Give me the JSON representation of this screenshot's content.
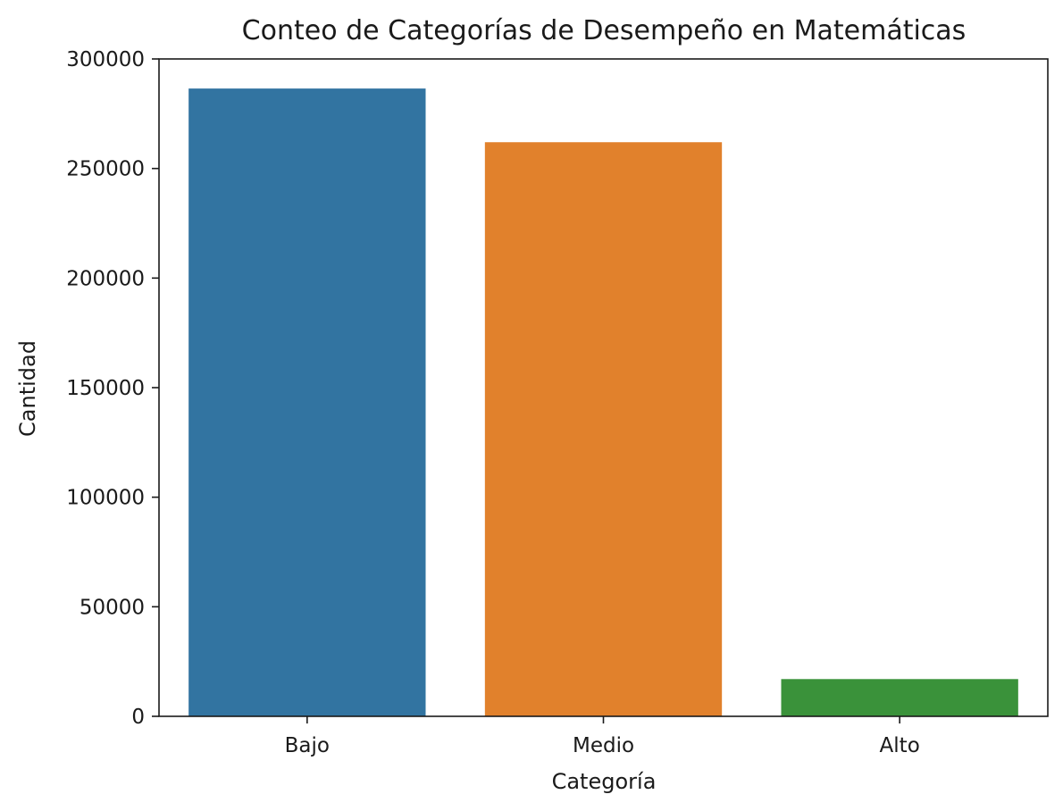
{
  "chart_data": {
    "type": "bar",
    "title": "Conteo de Categorías de Desempeño en Matemáticas",
    "xlabel": "Categoría",
    "ylabel": "Cantidad",
    "categories": [
      "Bajo",
      "Medio",
      "Alto"
    ],
    "values": [
      286500,
      262000,
      17000
    ],
    "colors": [
      "#3274a1",
      "#e1812c",
      "#3a923a"
    ],
    "ylim": [
      0,
      300000
    ],
    "yticks": [
      0,
      50000,
      100000,
      150000,
      200000,
      250000,
      300000
    ],
    "ytick_labels": [
      "0",
      "50000",
      "100000",
      "150000",
      "200000",
      "250000",
      "300000"
    ],
    "grid": false,
    "legend": false
  }
}
